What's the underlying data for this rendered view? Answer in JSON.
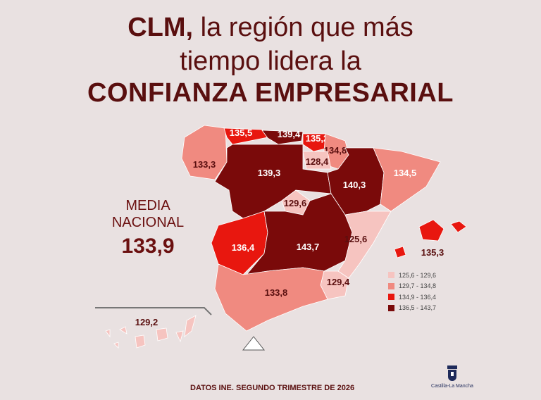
{
  "title": {
    "line1_bold": "CLM,",
    "line1_rest": " la región que más",
    "line2": "tiempo lidera la",
    "line3": "CONFIANZA EMPRESARIAL"
  },
  "media": {
    "line1": "MEDIA",
    "line2": "NACIONAL",
    "value": "133,9"
  },
  "colors": {
    "pale": "#f6c4c0",
    "salmon": "#f08a80",
    "red": "#e8170f",
    "dark": "#7a0a0a",
    "text": "#5a0f0f",
    "background": "#e9e1e1"
  },
  "regions": [
    {
      "name": "Galicia",
      "value": "133,3",
      "class": "salmon"
    },
    {
      "name": "Asturias",
      "value": "135,5",
      "class": "red"
    },
    {
      "name": "Cantabria",
      "value": "139,4",
      "class": "dark"
    },
    {
      "name": "País Vasco",
      "value": "135,2",
      "class": "red"
    },
    {
      "name": "Navarra",
      "value": "134,8",
      "class": "salmon"
    },
    {
      "name": "La Rioja",
      "value": "128,4",
      "class": "pale"
    },
    {
      "name": "Castilla y León",
      "value": "139,3",
      "class": "dark"
    },
    {
      "name": "Aragón",
      "value": "140,3",
      "class": "dark"
    },
    {
      "name": "Cataluña",
      "value": "134,5",
      "class": "salmon"
    },
    {
      "name": "Madrid",
      "value": "129,6",
      "class": "pale"
    },
    {
      "name": "Extremadura",
      "value": "136,4",
      "class": "red"
    },
    {
      "name": "Castilla-La Mancha",
      "value": "143,7",
      "class": "dark"
    },
    {
      "name": "Comunitat Valenciana",
      "value": "125,6",
      "class": "pale"
    },
    {
      "name": "Murcia",
      "value": "129,4",
      "class": "pale"
    },
    {
      "name": "Andalucía",
      "value": "133,8",
      "class": "salmon"
    },
    {
      "name": "Illes Balears",
      "value": "135,3",
      "class": "red"
    },
    {
      "name": "Canarias",
      "value": "129,2",
      "class": "pale"
    }
  ],
  "legend": [
    {
      "range": "125,6 - 129,6",
      "class": "pale"
    },
    {
      "range": "129,7 - 134,8",
      "class": "salmon"
    },
    {
      "range": "134,9 - 136,4",
      "class": "red"
    },
    {
      "range": "136,5 - 143,7",
      "class": "dark"
    }
  ],
  "footer": "DATOS INE. SEGUNDO TRIMESTRE DE 2026",
  "logo_text": "Castilla-La Mancha"
}
